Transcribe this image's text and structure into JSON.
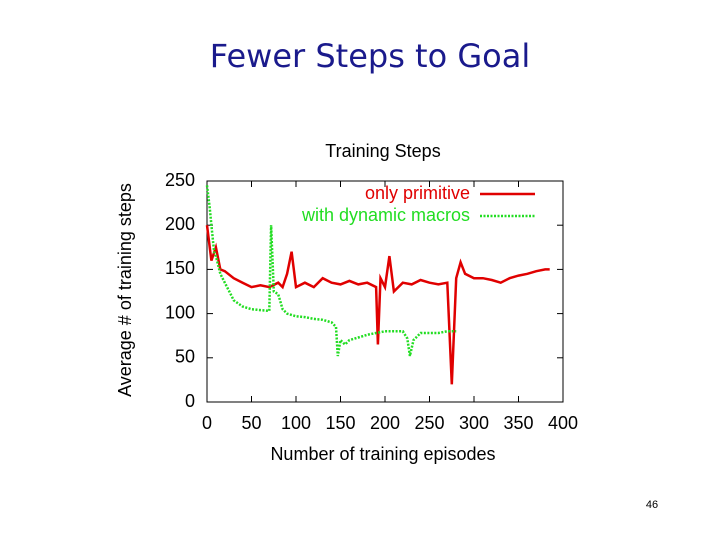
{
  "slide": {
    "title": "Fewer Steps to Goal",
    "page_number": "46"
  },
  "chart_data": {
    "type": "line",
    "title": "Training Steps",
    "x_label": "Number of training episodes",
    "y_label": "Average # of training steps",
    "xlim": [
      0,
      400
    ],
    "ylim": [
      0,
      250
    ],
    "xticks": [
      0,
      50,
      100,
      150,
      200,
      250,
      300,
      350,
      400
    ],
    "yticks": [
      0,
      50,
      100,
      150,
      200,
      250
    ],
    "grid": false,
    "legend": "top-right",
    "series": [
      {
        "name": "only primitive",
        "color": "#e00000",
        "dash": false,
        "x": [
          0,
          5,
          10,
          15,
          20,
          30,
          40,
          50,
          60,
          70,
          80,
          85,
          90,
          95,
          100,
          110,
          120,
          130,
          140,
          150,
          160,
          170,
          180,
          190,
          192,
          195,
          200,
          205,
          210,
          220,
          230,
          240,
          250,
          260,
          270,
          275,
          280,
          285,
          290,
          300,
          310,
          320,
          330,
          340,
          350,
          360,
          370,
          380,
          385
        ],
        "values": [
          200,
          160,
          175,
          150,
          148,
          140,
          135,
          130,
          132,
          130,
          135,
          130,
          145,
          170,
          130,
          135,
          130,
          140,
          135,
          133,
          137,
          133,
          135,
          130,
          65,
          140,
          130,
          165,
          125,
          135,
          133,
          138,
          135,
          133,
          135,
          20,
          140,
          158,
          145,
          140,
          140,
          138,
          135,
          140,
          143,
          145,
          148,
          150,
          150
        ]
      },
      {
        "name": "with dynamic macros",
        "color": "#22dd22",
        "dash": true,
        "x": [
          0,
          3,
          5,
          8,
          10,
          15,
          20,
          25,
          30,
          40,
          50,
          60,
          70,
          72,
          75,
          80,
          85,
          90,
          100,
          110,
          120,
          130,
          140,
          145,
          147,
          150,
          155,
          160,
          170,
          180,
          190,
          200,
          210,
          220,
          225,
          228,
          232,
          240,
          250,
          260,
          270,
          280
        ],
        "values": [
          245,
          220,
          200,
          170,
          165,
          145,
          135,
          125,
          115,
          108,
          105,
          104,
          103,
          200,
          125,
          122,
          105,
          100,
          97,
          96,
          94,
          93,
          90,
          85,
          52,
          70,
          65,
          70,
          73,
          76,
          78,
          80,
          80,
          80,
          72,
          52,
          70,
          78,
          78,
          78,
          80,
          80
        ]
      }
    ]
  }
}
